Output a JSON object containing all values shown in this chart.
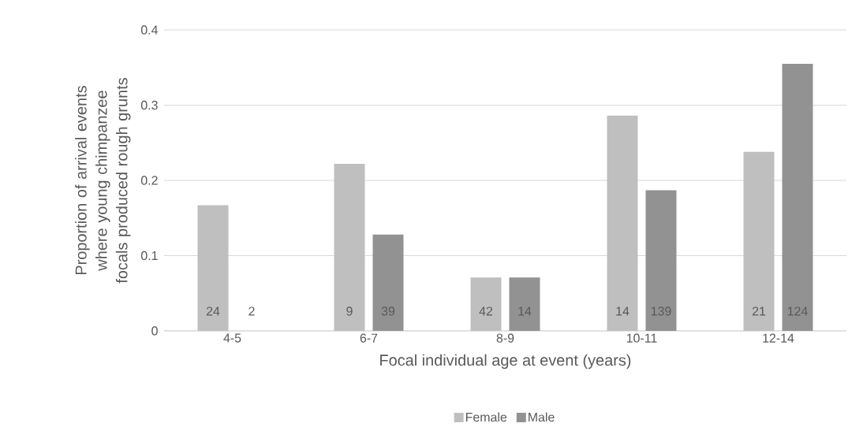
{
  "chart_data": {
    "type": "bar",
    "xlabel": "Focal individual age at event (years)",
    "ylabel": "Proportion of arrival events where young chimpanzee focals produced rough grunts",
    "categories": [
      "4-5",
      "6-7",
      "8-9",
      "10-11",
      "12-14"
    ],
    "series": [
      {
        "name": "Female",
        "color": "#bfbfbf",
        "values": [
          0.167,
          0.222,
          0.071,
          0.286,
          0.238
        ]
      },
      {
        "name": "Male",
        "color": "#929292",
        "values": [
          0,
          0.128,
          0.071,
          0.187,
          0.355
        ]
      }
    ],
    "annotations": [
      {
        "text": "24",
        "x": "4-5",
        "y": 0
      },
      {
        "text": "2",
        "x": "4-5",
        "y": 0
      },
      {
        "text": "9",
        "x": "6-7",
        "y": 0
      },
      {
        "text": "39",
        "x": "6-7",
        "y": 0
      },
      {
        "text": "42",
        "x": "8-9",
        "y": 0
      },
      {
        "text": "14",
        "x": "8-9",
        "y": 0
      },
      {
        "text": "14",
        "x": "10-11",
        "y": 0
      },
      {
        "text": "139",
        "x": "10-11",
        "y": 0
      },
      {
        "text": "21",
        "x": "12-14",
        "y": 0
      },
      {
        "text": "124",
        "x": "12-14",
        "y": 0
      }
    ],
    "ylim": [
      0,
      0.4
    ],
    "yticks": [
      0,
      0.1,
      0.2,
      0.3,
      0.4
    ],
    "grid": "y",
    "legend": "bottom"
  }
}
